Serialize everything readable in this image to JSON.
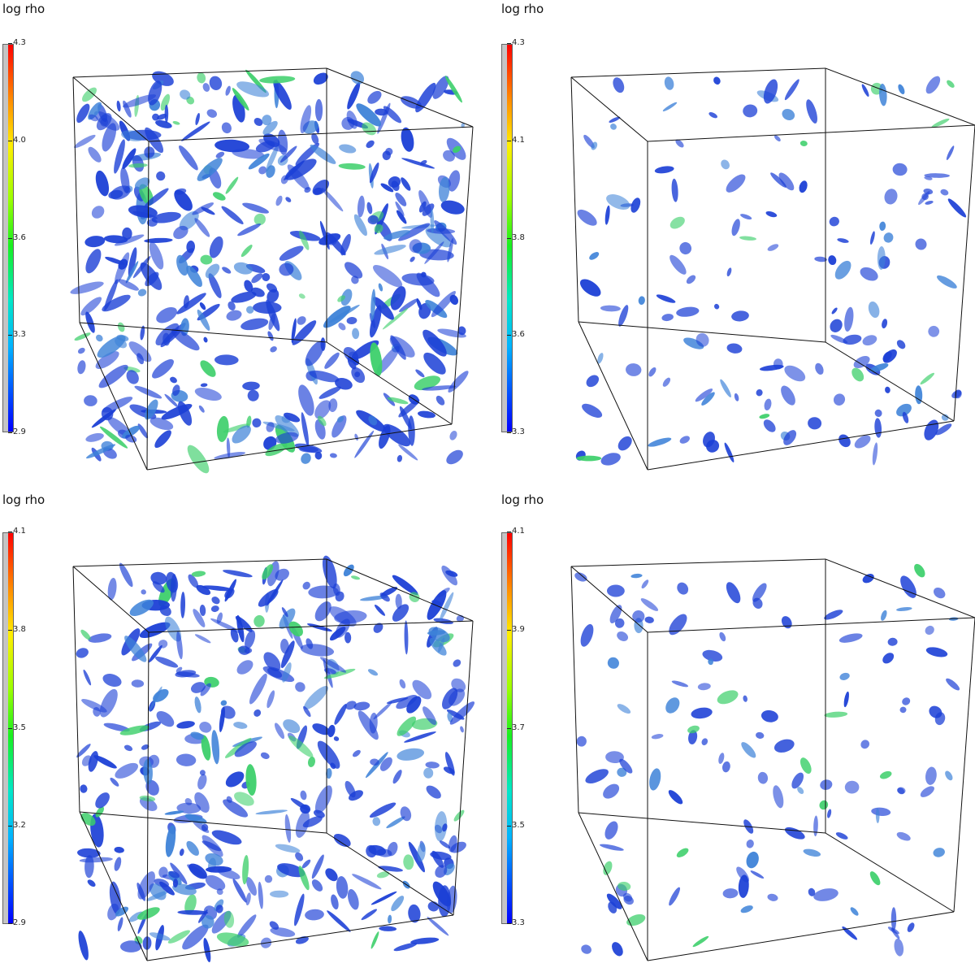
{
  "panels": [
    {
      "title": "log rho",
      "ticks": [
        "4.3",
        "4.0",
        "3.6",
        "3.3",
        "2.9"
      ],
      "density": 1.0
    },
    {
      "title": "log rho",
      "ticks": [
        "4.3",
        "4.1",
        "3.8",
        "3.6",
        "3.3"
      ],
      "density": 0.35
    },
    {
      "title": "log rho",
      "ticks": [
        "4.1",
        "3.8",
        "3.5",
        "3.2",
        "2.9"
      ],
      "density": 0.9
    },
    {
      "title": "log rho",
      "ticks": [
        "4.1",
        "3.9",
        "3.7",
        "3.5",
        "3.3"
      ],
      "density": 0.3
    }
  ],
  "colors": {
    "blob_main": "#1b3fd6",
    "blob_mid": "#3d82d8",
    "blob_hi": "#3ccf6a",
    "frame": "#111111"
  },
  "icons": [
    "colorbar",
    "cube-wireframe",
    "density-isosurface"
  ]
}
